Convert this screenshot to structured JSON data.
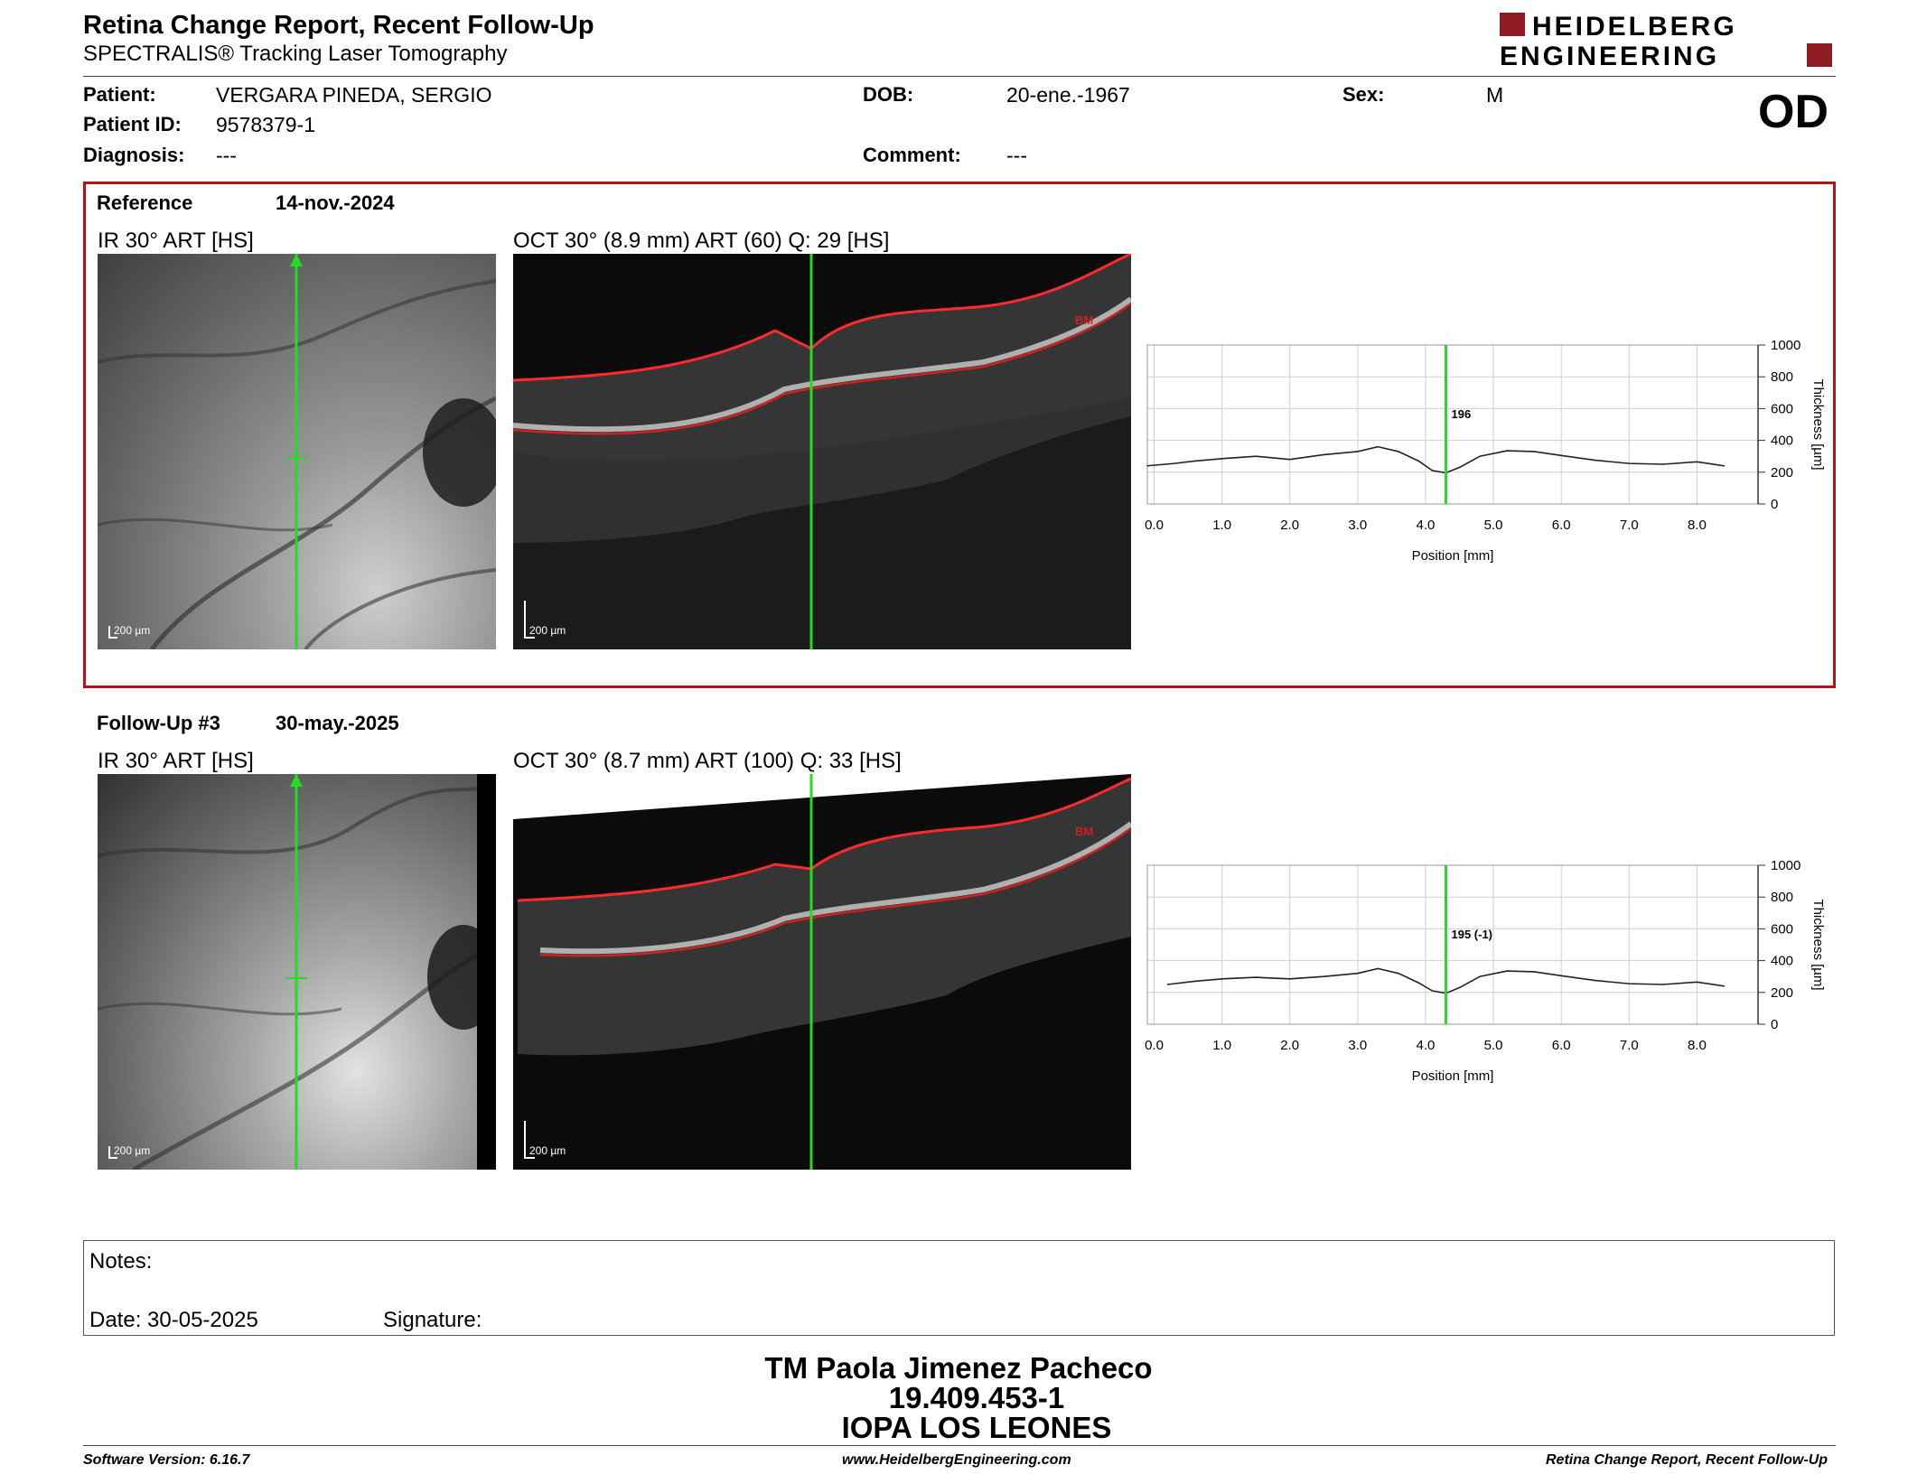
{
  "header": {
    "title": "Retina Change Report, Recent Follow-Up",
    "subtitle": "SPECTRALIS® Tracking Laser Tomography",
    "logo_line1": "HEIDELBERG",
    "logo_line2": "ENGINEERING"
  },
  "patient": {
    "patient_label": "Patient:",
    "patient_value": "VERGARA PINEDA, SERGIO",
    "id_label": "Patient ID:",
    "id_value": "9578379-1",
    "diagnosis_label": "Diagnosis:",
    "diagnosis_value": "---",
    "dob_label": "DOB:",
    "dob_value": "20-ene.-1967",
    "comment_label": "Comment:",
    "comment_value": "---",
    "sex_label": "Sex:",
    "sex_value": "M",
    "eye": "OD"
  },
  "reference": {
    "label": "Reference",
    "date": "14-nov.-2024",
    "ir_caption": "IR 30° ART [HS]",
    "oct_caption": "OCT 30° (8.9 mm) ART (60) Q: 29 [HS]",
    "scale_label": "200 µm",
    "bm_label": "BM",
    "marker_value": "196"
  },
  "followup": {
    "label": "Follow-Up #3",
    "date": "30-may.-2025",
    "ir_caption": "IR 30° ART [HS]",
    "oct_caption": "OCT 30° (8.7 mm) ART (100) Q: 33 [HS]",
    "scale_label": "200 µm",
    "bm_label": "BM",
    "marker_value": "195 (-1)"
  },
  "chart_data": [
    {
      "type": "line",
      "xlabel": "Position [mm]",
      "ylabel": "Thickness [µm]",
      "xlim": [
        -0.1,
        8.9
      ],
      "ylim": [
        0,
        1000
      ],
      "x_ticks": [
        "0.0",
        "1.0",
        "2.0",
        "3.0",
        "4.0",
        "5.0",
        "6.0",
        "7.0",
        "8.0"
      ],
      "y_ticks": [
        "0",
        "200",
        "400",
        "600",
        "800",
        "1000"
      ],
      "grid": true,
      "marker_x": 4.3,
      "series": [
        {
          "x": [
            -0.1,
            0.3,
            0.6,
            1.0,
            1.5,
            2.0,
            2.5,
            3.0,
            3.3,
            3.6,
            3.9,
            4.1,
            4.3,
            4.5,
            4.8,
            5.2,
            5.6,
            6.0,
            6.5,
            7.0,
            7.5,
            8.0,
            8.4
          ],
          "values": [
            240,
            255,
            270,
            285,
            300,
            280,
            310,
            330,
            360,
            330,
            270,
            210,
            196,
            230,
            300,
            335,
            330,
            305,
            275,
            255,
            250,
            265,
            240
          ]
        }
      ]
    },
    {
      "type": "line",
      "xlabel": "Position [mm]",
      "ylabel": "Thickness [µm]",
      "xlim": [
        -0.1,
        8.9
      ],
      "ylim": [
        0,
        1000
      ],
      "x_ticks": [
        "0.0",
        "1.0",
        "2.0",
        "3.0",
        "4.0",
        "5.0",
        "6.0",
        "7.0",
        "8.0"
      ],
      "y_ticks": [
        "0",
        "200",
        "400",
        "600",
        "800",
        "1000"
      ],
      "grid": true,
      "marker_x": 4.3,
      "series": [
        {
          "x": [
            0.2,
            0.6,
            1.0,
            1.5,
            2.0,
            2.5,
            3.0,
            3.3,
            3.6,
            3.9,
            4.1,
            4.3,
            4.5,
            4.8,
            5.2,
            5.6,
            6.0,
            6.5,
            7.0,
            7.5,
            8.0,
            8.4
          ],
          "values": [
            250,
            270,
            285,
            295,
            285,
            300,
            320,
            350,
            320,
            260,
            210,
            195,
            230,
            300,
            335,
            330,
            305,
            275,
            255,
            250,
            265,
            240
          ]
        }
      ]
    }
  ],
  "notes": {
    "notes_label": "Notes:",
    "date_label": "Date: 30-05-2025",
    "signature_label": "Signature:"
  },
  "operator": {
    "name": "TM Paola Jimenez Pacheco",
    "rut": "19.409.453-1",
    "clinic": "IOPA LOS LEONES"
  },
  "footer": {
    "software": "Software Version: 6.16.7",
    "website": "www.HeidelbergEngineering.com",
    "report_name": "Retina Change Report, Recent Follow-Up"
  }
}
